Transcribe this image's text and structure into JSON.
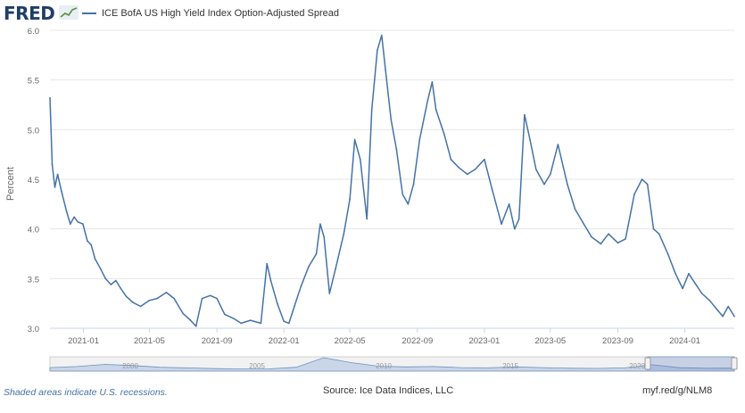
{
  "header": {
    "logo_text": "FRED",
    "logo_mark_icon": "trend-line-icon",
    "legend_label": "ICE BofA US High Yield Index Option-Adjusted Spread",
    "series_color": "#4572a7"
  },
  "chart_data": {
    "type": "line",
    "title": "",
    "ylabel": "Percent",
    "xlabel": "",
    "ylim": [
      3.0,
      6.0
    ],
    "yticks": [
      "3.0",
      "3.5",
      "4.0",
      "4.5",
      "5.0",
      "5.5",
      "6.0"
    ],
    "xticks": [
      "2021-01",
      "2021-05",
      "2021-09",
      "2022-01",
      "2022-05",
      "2022-09",
      "2023-01",
      "2023-05",
      "2023-09",
      "2024-01"
    ],
    "xrange": [
      "2020-11-01",
      "2024-03-31"
    ],
    "grid": true,
    "series": [
      {
        "name": "ICE BofA US High Yield Index Option-Adjusted Spread",
        "points": [
          [
            "2020-11-01",
            5.32
          ],
          [
            "2020-11-05",
            4.65
          ],
          [
            "2020-11-10",
            4.42
          ],
          [
            "2020-11-15",
            4.55
          ],
          [
            "2020-11-22",
            4.38
          ],
          [
            "2020-12-01",
            4.18
          ],
          [
            "2020-12-08",
            4.05
          ],
          [
            "2020-12-15",
            4.12
          ],
          [
            "2020-12-22",
            4.07
          ],
          [
            "2020-12-31",
            4.05
          ],
          [
            "2021-01-08",
            3.88
          ],
          [
            "2021-01-15",
            3.84
          ],
          [
            "2021-01-22",
            3.7
          ],
          [
            "2021-02-01",
            3.6
          ],
          [
            "2021-02-10",
            3.5
          ],
          [
            "2021-02-20",
            3.44
          ],
          [
            "2021-03-01",
            3.48
          ],
          [
            "2021-03-10",
            3.4
          ],
          [
            "2021-03-20",
            3.32
          ],
          [
            "2021-04-01",
            3.26
          ],
          [
            "2021-04-15",
            3.22
          ],
          [
            "2021-05-01",
            3.28
          ],
          [
            "2021-05-15",
            3.3
          ],
          [
            "2021-06-01",
            3.36
          ],
          [
            "2021-06-15",
            3.3
          ],
          [
            "2021-07-01",
            3.15
          ],
          [
            "2021-07-15",
            3.08
          ],
          [
            "2021-07-25",
            3.02
          ],
          [
            "2021-08-05",
            3.3
          ],
          [
            "2021-08-20",
            3.33
          ],
          [
            "2021-09-01",
            3.3
          ],
          [
            "2021-09-15",
            3.14
          ],
          [
            "2021-10-01",
            3.1
          ],
          [
            "2021-10-15",
            3.05
          ],
          [
            "2021-11-01",
            3.08
          ],
          [
            "2021-11-20",
            3.05
          ],
          [
            "2021-12-01",
            3.65
          ],
          [
            "2021-12-08",
            3.48
          ],
          [
            "2021-12-20",
            3.25
          ],
          [
            "2022-01-01",
            3.07
          ],
          [
            "2022-01-10",
            3.05
          ],
          [
            "2022-01-20",
            3.22
          ],
          [
            "2022-02-01",
            3.42
          ],
          [
            "2022-02-15",
            3.62
          ],
          [
            "2022-03-01",
            3.75
          ],
          [
            "2022-03-08",
            4.05
          ],
          [
            "2022-03-15",
            3.92
          ],
          [
            "2022-03-25",
            3.35
          ],
          [
            "2022-04-05",
            3.6
          ],
          [
            "2022-04-20",
            3.95
          ],
          [
            "2022-05-01",
            4.3
          ],
          [
            "2022-05-10",
            4.9
          ],
          [
            "2022-05-20",
            4.7
          ],
          [
            "2022-06-01",
            4.1
          ],
          [
            "2022-06-10",
            5.2
          ],
          [
            "2022-06-20",
            5.8
          ],
          [
            "2022-06-28",
            5.95
          ],
          [
            "2022-07-05",
            5.6
          ],
          [
            "2022-07-15",
            5.1
          ],
          [
            "2022-07-25",
            4.8
          ],
          [
            "2022-08-05",
            4.35
          ],
          [
            "2022-08-15",
            4.25
          ],
          [
            "2022-08-25",
            4.45
          ],
          [
            "2022-09-05",
            4.9
          ],
          [
            "2022-09-20",
            5.3
          ],
          [
            "2022-09-28",
            5.48
          ],
          [
            "2022-10-05",
            5.2
          ],
          [
            "2022-10-20",
            4.95
          ],
          [
            "2022-11-01",
            4.7
          ],
          [
            "2022-11-15",
            4.62
          ],
          [
            "2022-12-01",
            4.55
          ],
          [
            "2022-12-15",
            4.6
          ],
          [
            "2023-01-01",
            4.7
          ],
          [
            "2023-01-15",
            4.4
          ],
          [
            "2023-02-01",
            4.05
          ],
          [
            "2023-02-15",
            4.25
          ],
          [
            "2023-02-25",
            4.0
          ],
          [
            "2023-03-05",
            4.1
          ],
          [
            "2023-03-15",
            5.15
          ],
          [
            "2023-03-25",
            4.9
          ],
          [
            "2023-04-05",
            4.6
          ],
          [
            "2023-04-20",
            4.45
          ],
          [
            "2023-05-01",
            4.55
          ],
          [
            "2023-05-15",
            4.85
          ],
          [
            "2023-06-01",
            4.45
          ],
          [
            "2023-06-15",
            4.2
          ],
          [
            "2023-07-01",
            4.05
          ],
          [
            "2023-07-15",
            3.92
          ],
          [
            "2023-08-01",
            3.85
          ],
          [
            "2023-08-15",
            3.95
          ],
          [
            "2023-09-01",
            3.86
          ],
          [
            "2023-09-15",
            3.9
          ],
          [
            "2023-10-01",
            4.35
          ],
          [
            "2023-10-15",
            4.5
          ],
          [
            "2023-10-25",
            4.45
          ],
          [
            "2023-11-05",
            4.0
          ],
          [
            "2023-11-15",
            3.95
          ],
          [
            "2023-12-01",
            3.75
          ],
          [
            "2023-12-15",
            3.55
          ],
          [
            "2023-12-28",
            3.4
          ],
          [
            "2024-01-08",
            3.55
          ],
          [
            "2024-01-20",
            3.45
          ],
          [
            "2024-02-01",
            3.35
          ],
          [
            "2024-02-15",
            3.28
          ],
          [
            "2024-03-01",
            3.18
          ],
          [
            "2024-03-10",
            3.12
          ],
          [
            "2024-03-20",
            3.22
          ],
          [
            "2024-03-31",
            3.12
          ]
        ]
      }
    ],
    "navigator": {
      "labels": [
        "2000",
        "2005",
        "2010",
        "2015",
        "2020"
      ],
      "values": [
        5.0,
        6.5,
        9.5,
        8.0,
        5.5,
        4.5,
        3.5,
        3.0,
        3.2,
        5.5,
        19.0,
        12.0,
        7.0,
        6.0,
        6.5,
        5.0,
        4.5,
        6.0,
        5.0,
        4.0,
        3.8,
        4.5,
        9.0,
        4.8,
        4.0,
        4.2
      ]
    }
  },
  "footer": {
    "recession_note": "Shaded areas indicate U.S. recessions.",
    "source": "Source: Ice Data Indices, LLC",
    "short_url": "myf.red/g/NLM8"
  }
}
